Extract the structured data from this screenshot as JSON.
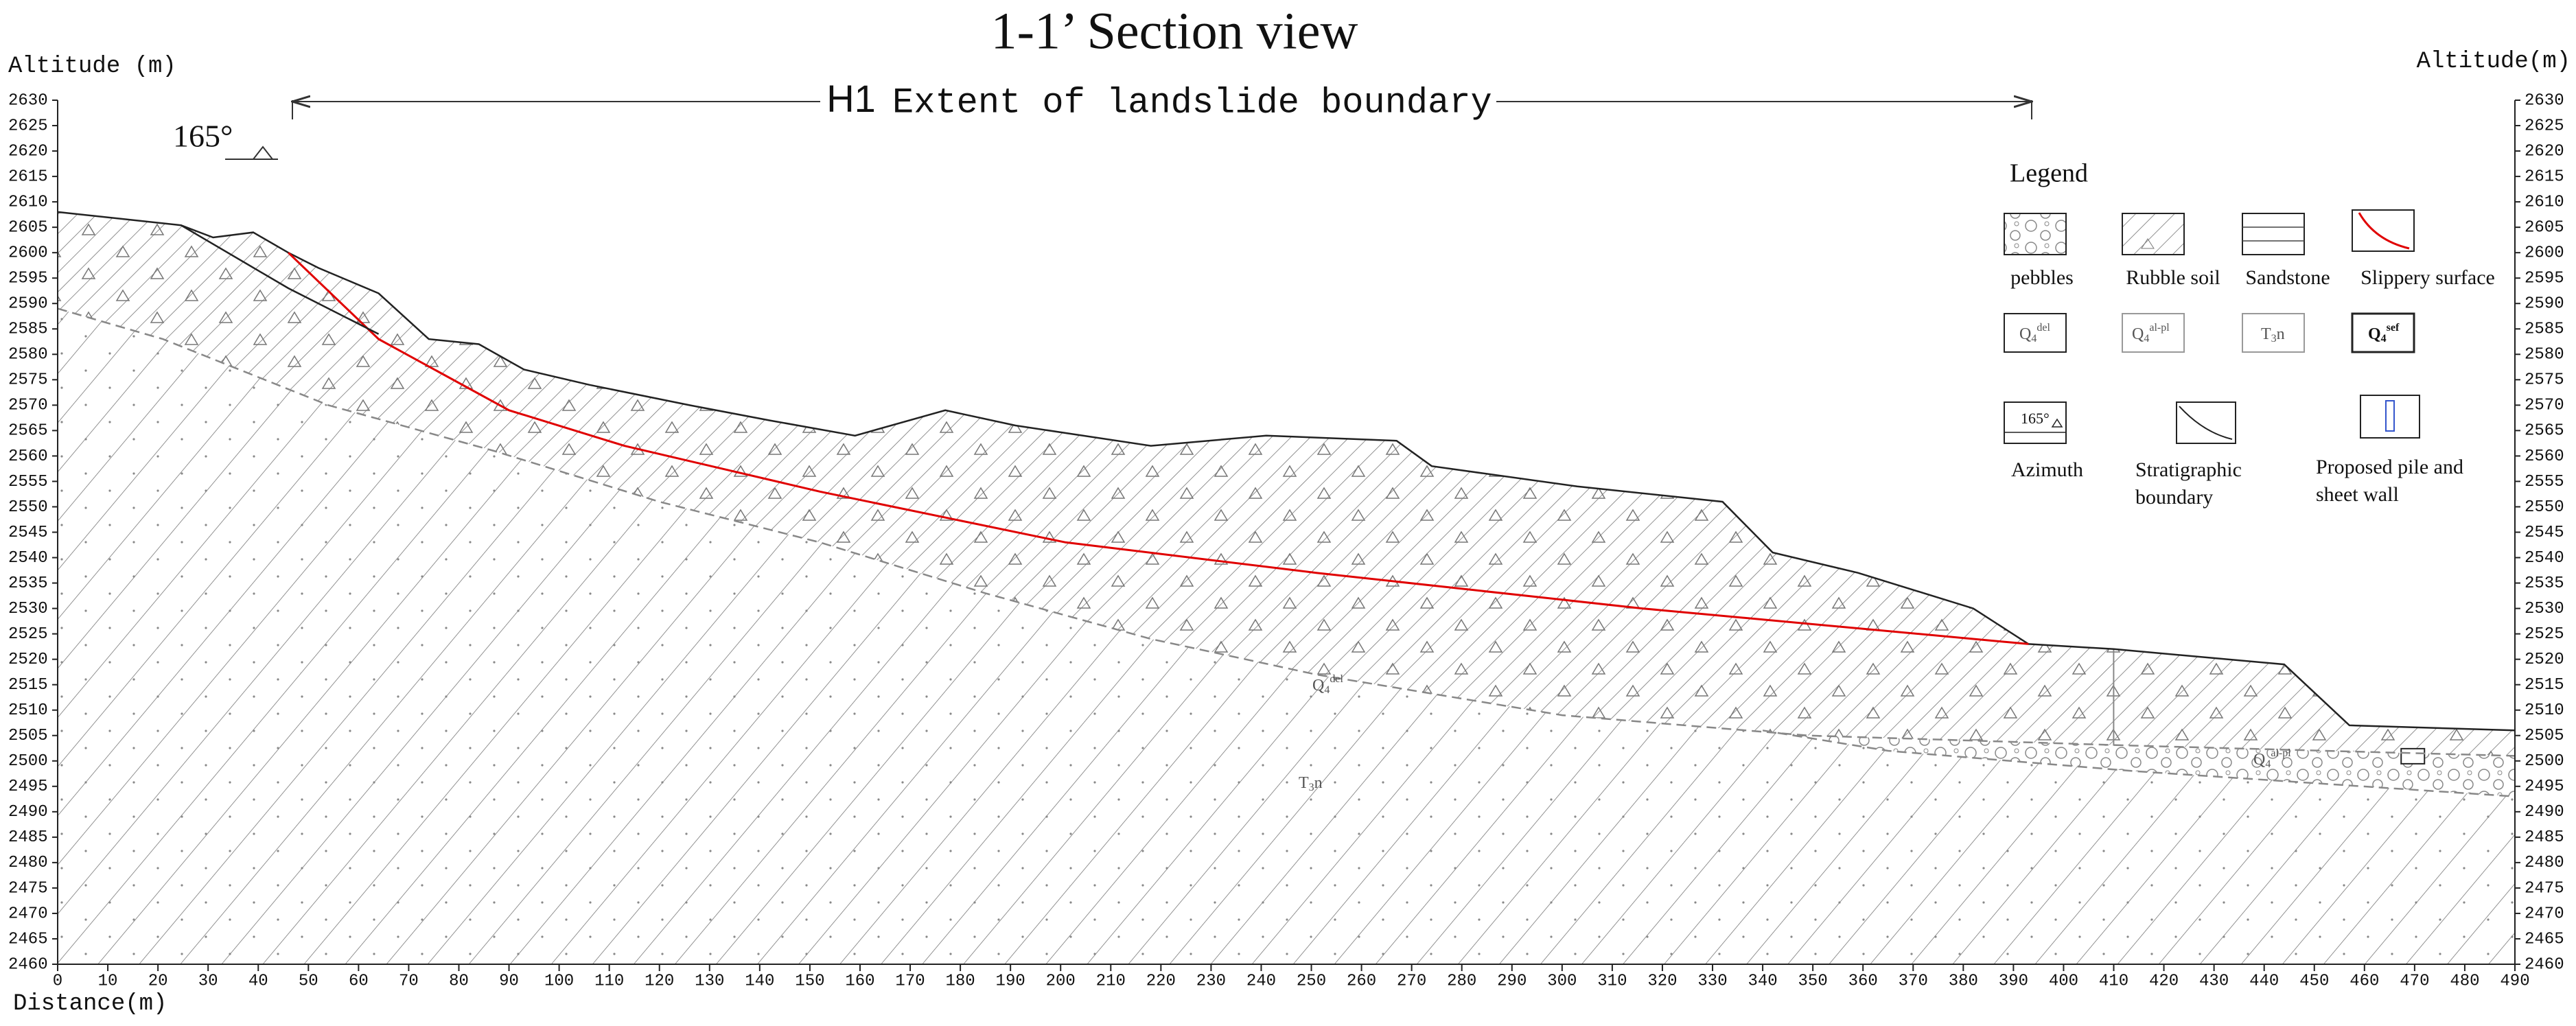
{
  "chart_data": {
    "type": "section",
    "title": "1-1’ Section view",
    "y_label": "Altitude (m)",
    "y2_label": "Altitude(m)",
    "x_label": "Distance(m)",
    "extent_id": "H1",
    "extent_label": "Extent of landslide boundary",
    "azimuth": "165°",
    "xlim": [
      0,
      490
    ],
    "xticks": [
      0,
      10,
      20,
      30,
      40,
      50,
      60,
      70,
      80,
      90,
      100,
      110,
      120,
      130,
      140,
      150,
      160,
      170,
      180,
      190,
      200,
      210,
      220,
      230,
      240,
      250,
      260,
      270,
      280,
      290,
      300,
      310,
      320,
      330,
      340,
      350,
      360,
      370,
      380,
      390,
      400,
      410,
      420,
      430,
      440,
      450,
      460,
      470,
      480,
      490
    ],
    "ylim": [
      2460,
      2630
    ],
    "yticks": [
      2460,
      2465,
      2470,
      2475,
      2480,
      2485,
      2490,
      2495,
      2500,
      2505,
      2510,
      2515,
      2520,
      2525,
      2530,
      2535,
      2540,
      2545,
      2550,
      2555,
      2560,
      2565,
      2570,
      2575,
      2580,
      2585,
      2590,
      2595,
      2600,
      2605,
      2610,
      2615,
      2620,
      2625,
      2630
    ],
    "y2lim": [
      2460,
      2630
    ],
    "series": [
      {
        "color": "#222222",
        "x": [
          0,
          24.6,
          31,
          39,
          46,
          52,
          64,
          74,
          84,
          93,
          106,
          126,
          142,
          159,
          177,
          191,
          218,
          241,
          267,
          274,
          303,
          332,
          342,
          359,
          382,
          393,
          410,
          444,
          457,
          490
        ],
        "values": [
          2608,
          2605.4,
          2603,
          2604,
          2600,
          2597,
          2592,
          2583,
          2582,
          2577,
          2574,
          2570,
          2567,
          2564,
          2569,
          2566,
          2562,
          2564,
          2563,
          2558,
          2554,
          2551,
          2541,
          2537,
          2530,
          2523,
          2522,
          2519,
          2507,
          2506
        ]
      },
      {
        "color": "#888888",
        "dash": true,
        "x": [
          0,
          21,
          54,
          87,
          120,
          152,
          185,
          218,
          251,
          300,
          349,
          414,
          490
        ],
        "values": [
          2589,
          2583,
          2570,
          2561,
          2551,
          2543,
          2533,
          2524,
          2517,
          2509,
          2505,
          2503,
          2501
        ]
      },
      {
        "color": "#888888",
        "dash": true,
        "x": [
          340,
          365,
          414,
          490
        ],
        "values": [
          2506,
          2502,
          2498,
          2493
        ]
      },
      {
        "color": "#e00000",
        "x": [
          46,
          64,
          90,
          113,
          152,
          201,
          251,
          316,
          393
        ],
        "values": [
          2600,
          2583,
          2569,
          2562,
          2553,
          2543,
          2537,
          2530,
          2523
        ]
      },
      {
        "color": "#222222",
        "x": [
          24.6,
          46,
          64
        ],
        "values": [
          2605.4,
          2593,
          2584
        ]
      }
    ],
    "unit_labels": [
      {
        "base": "Q",
        "sub": "4",
        "sup": "del"
      },
      {
        "base": "T",
        "sub": "3",
        "tail": "n"
      },
      {
        "base": "Q",
        "sub": "4",
        "sup": "al-pl"
      }
    ],
    "legend": {
      "title": "Legend",
      "items": [
        "pebbles",
        "Rubble soil",
        "Sandstone",
        "Slippery surface",
        "Azimuth",
        [
          "Stratigraphic",
          "boundary"
        ],
        [
          "Proposed pile and",
          "sheet wall"
        ]
      ],
      "codes": [
        {
          "base": "Q",
          "sub": "4",
          "sup": "del"
        },
        {
          "base": "Q",
          "sub": "4",
          "sup": "al-pl"
        },
        {
          "base": "T",
          "sub": "3",
          "tail": "n"
        },
        {
          "base": "Q",
          "sub": "4",
          "sup": "sef"
        }
      ],
      "azimuth_code": "165°"
    }
  }
}
